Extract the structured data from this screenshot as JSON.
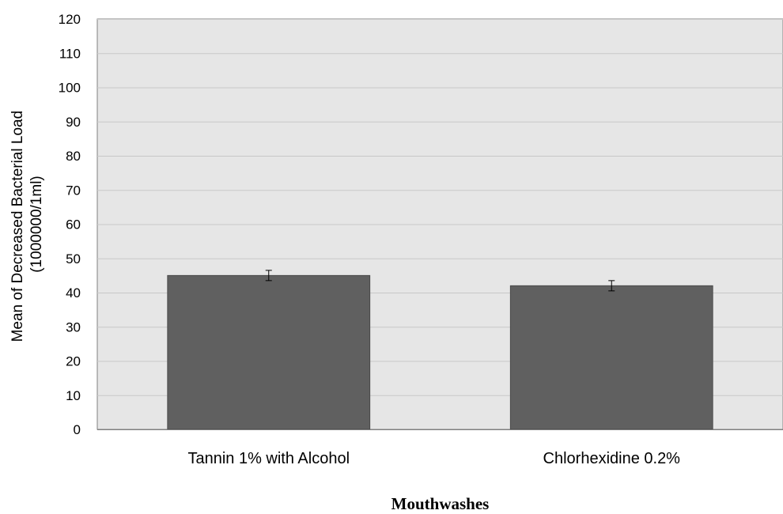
{
  "chart_data": {
    "type": "bar",
    "categories": [
      "Tannin 1% with Alcohol",
      "Chlorhexidine 0.2%"
    ],
    "values": [
      45,
      42
    ],
    "error": [
      1.5,
      1.5
    ],
    "ylabel_line1": "Mean of Decreased Bacterial Load",
    "ylabel_line2": "(1000000/1ml)",
    "xlabel": "Mouthwashes",
    "ylim": [
      0,
      120
    ],
    "ytick_step": 10,
    "ytick_labels": [
      "0",
      "10",
      "20",
      "30",
      "40",
      "50",
      "60",
      "70",
      "80",
      "90",
      "100",
      "110",
      "120"
    ],
    "grid": true,
    "colors": {
      "bar": "#606060",
      "plot_bg": "#e6e6e6",
      "grid": "#c8c8c8",
      "axis": "#808080"
    }
  }
}
